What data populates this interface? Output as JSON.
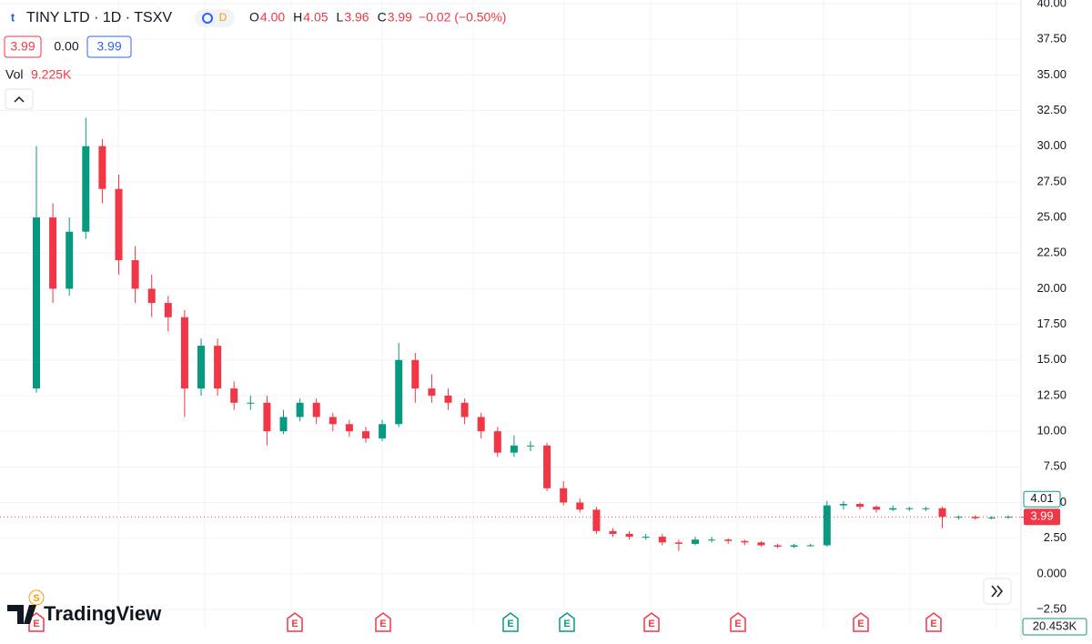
{
  "chart_data": {
    "type": "candlestick",
    "header": {
      "symbol": "TINY LTD · 1D · TSXV",
      "badge": "D",
      "ohlc": [
        {
          "key": "O",
          "text": "4.00"
        },
        {
          "key": "H",
          "text": "4.05"
        },
        {
          "key": "L",
          "text": "3.96"
        },
        {
          "key": "C",
          "text": "3.99"
        }
      ],
      "change": "−0.02 (−0.50%)",
      "boxes": [
        "3.99",
        "0.00",
        "3.99"
      ],
      "volume_label": "Vol",
      "volume": "9.225K"
    },
    "logo": "TradingView",
    "up_color": "#089981",
    "down_color": "#f23645",
    "open": [
      13,
      25,
      20,
      24,
      30,
      27,
      22,
      20,
      19,
      18,
      13,
      16,
      13,
      12,
      12,
      10,
      11,
      12,
      11,
      10.5,
      10,
      9.5,
      10.5,
      15,
      13,
      12.5,
      12,
      11,
      10,
      8.5,
      9,
      9,
      6,
      5,
      4.5,
      3,
      2.8,
      2.6,
      2.6,
      2.2,
      2.1,
      2.4,
      2.4,
      2.3,
      2.2,
      2,
      1.9,
      2,
      2,
      4.8,
      4.9,
      4.7,
      4.5,
      4.6,
      4.6,
      4.6,
      4,
      4,
      3.9,
      3.95,
      4.0
    ],
    "high": [
      30,
      26,
      25,
      32,
      30.5,
      28,
      23,
      21,
      19.5,
      18.5,
      16.5,
      16.5,
      13.5,
      12.5,
      12.5,
      11.5,
      12.3,
      12.3,
      11.3,
      10.8,
      10.3,
      10.8,
      16.2,
      15.5,
      14,
      13,
      12.3,
      11.3,
      10.3,
      9.7,
      9.3,
      9.2,
      6.5,
      5.3,
      4.7,
      3.2,
      3,
      2.8,
      2.8,
      2.4,
      2.6,
      2.6,
      2.5,
      2.4,
      2.3,
      2.1,
      2.1,
      2.1,
      5.1,
      5.1,
      5,
      4.8,
      4.8,
      4.7,
      4.7,
      4.7,
      4.1,
      4.1,
      4.05,
      4.1,
      4.05
    ],
    "low": [
      12.7,
      19,
      19.5,
      23.5,
      26,
      21,
      19,
      18,
      17,
      11,
      12.5,
      12.5,
      11.5,
      11.5,
      9,
      9.8,
      10.7,
      10.5,
      10,
      9.6,
      9.2,
      9.3,
      10.3,
      12,
      12,
      11.5,
      10.5,
      9.5,
      8.2,
      8.2,
      8.6,
      5.8,
      4.8,
      4.3,
      2.8,
      2.6,
      2.4,
      2.4,
      2,
      1.6,
      2,
      2.2,
      2.1,
      2,
      1.9,
      1.8,
      1.8,
      1.9,
      1.9,
      4.5,
      4.5,
      4.3,
      4.4,
      4.4,
      4.4,
      3.2,
      3.8,
      3.8,
      3.8,
      3.85,
      3.96
    ],
    "close": [
      25,
      20,
      24,
      30,
      27,
      22,
      20,
      19,
      18,
      13,
      16,
      13,
      12,
      12,
      10,
      11,
      12,
      11,
      10.5,
      10,
      9.5,
      10.5,
      15,
      13,
      12.5,
      12,
      11,
      10,
      8.5,
      9,
      9,
      6,
      5,
      4.5,
      3,
      2.8,
      2.6,
      2.6,
      2.2,
      2.1,
      2.4,
      2.4,
      2.3,
      2.2,
      2,
      1.9,
      2,
      2,
      4.8,
      4.9,
      4.7,
      4.5,
      4.6,
      4.6,
      4.6,
      4,
      4,
      3.9,
      3.95,
      4,
      3.99
    ],
    "ylim": [
      -2.5,
      40
    ],
    "yticks": [
      {
        "value": 40,
        "label": "40.00"
      },
      {
        "value": 37.5,
        "label": "37.50"
      },
      {
        "value": 35,
        "label": "35.00"
      },
      {
        "value": 32.5,
        "label": "32.50"
      },
      {
        "value": 30,
        "label": "30.00"
      },
      {
        "value": 27.5,
        "label": "27.50"
      },
      {
        "value": 25,
        "label": "25.00"
      },
      {
        "value": 22.5,
        "label": "22.50"
      },
      {
        "value": 20,
        "label": "20.00"
      },
      {
        "value": 17.5,
        "label": "17.50"
      },
      {
        "value": 15,
        "label": "15.00"
      },
      {
        "value": 12.5,
        "label": "12.50"
      },
      {
        "value": 10,
        "label": "10.00"
      },
      {
        "value": 7.5,
        "label": "7.50"
      },
      {
        "value": 5,
        "label": "5.00"
      },
      {
        "value": 2.5,
        "label": "2.50"
      },
      {
        "value": 0,
        "label": "0.000"
      },
      {
        "value": -2.5,
        "label": "−2.50"
      }
    ],
    "grid": true,
    "last_price": {
      "value": 3.99,
      "label": "3.99"
    },
    "ref_price": {
      "value": 4.01,
      "label": "4.01"
    },
    "volume_axis_label": "20.453K",
    "events": [
      "S",
      "E",
      "E",
      "E",
      "E",
      "E",
      "E",
      "E",
      "E",
      "E"
    ]
  }
}
